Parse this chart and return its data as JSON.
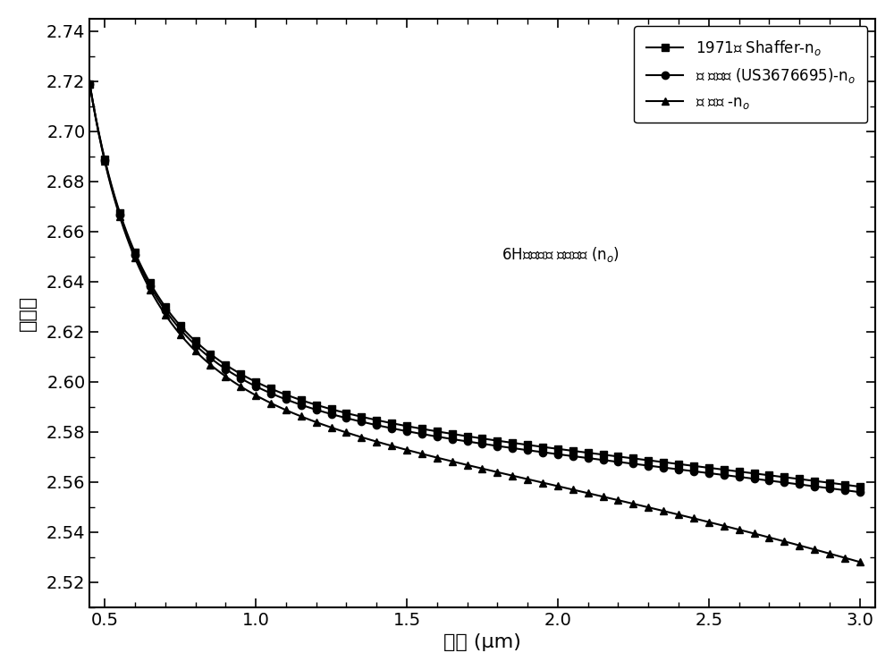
{
  "xlim": [
    0.45,
    3.05
  ],
  "ylim": [
    2.51,
    2.745
  ],
  "xticks": [
    0.5,
    1.0,
    1.5,
    2.0,
    2.5,
    3.0
  ],
  "yticks": [
    2.52,
    2.54,
    2.56,
    2.58,
    2.6,
    2.62,
    2.64,
    2.66,
    2.68,
    2.7,
    2.72,
    2.74
  ],
  "xlabel": "波长 (μm)",
  "ylabel": "折射率",
  "legend_label1": "1971年 Shaffer-n$_o$",
  "legend_label2": "美 国专利 (US3676695)-n$_o$",
  "legend_label3": "本 发明 -n$_o$",
  "annotation": "6H碳化硅折 射率对比 (n$_o$)",
  "line_color": "#000000",
  "background_color": "#ffffff",
  "n1_start": 2.719,
  "n1_end": 2.558,
  "n2_start": 2.719,
  "n2_end": 2.563,
  "n3_start": 2.719,
  "n3_end": 2.528,
  "n1_mid": 2.6,
  "n2_mid": 2.601,
  "n3_mid": 2.595
}
